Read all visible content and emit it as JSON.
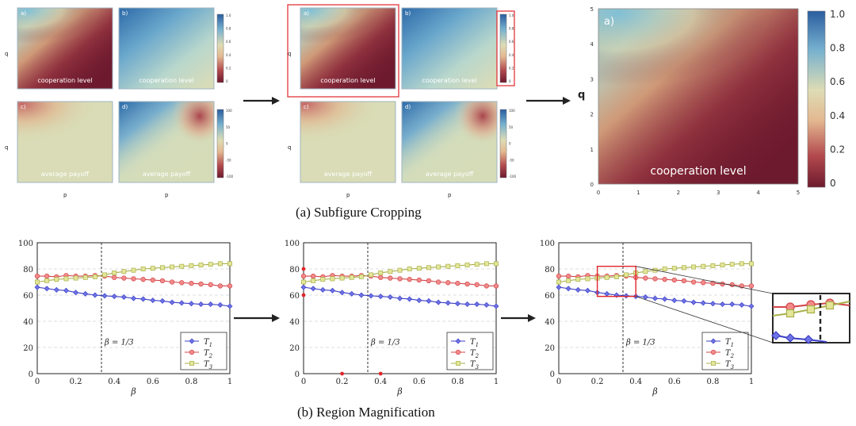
{
  "captions": {
    "top": "(a) Subfigure Cropping",
    "bottom": "(b) Region Magnification"
  },
  "heatmap_panel_labels": [
    "a)",
    "b)",
    "c)",
    "d)"
  ],
  "heatmap_overlays": {
    "cooperation": "cooperation level",
    "payoff": "average payoff"
  },
  "heatmap_axes": {
    "x": "p",
    "y": "q"
  },
  "colorbar_small_top": [
    "1.0",
    "0.8",
    "0.6",
    "0.4",
    "0.2",
    "0"
  ],
  "colorbar_small_bottom": [
    "100",
    "50",
    "0",
    "-50",
    "-100"
  ],
  "cropped_panel": {
    "label": "a)",
    "overlay": "cooperation level",
    "ylabel": "q",
    "xticks": [
      "0",
      "1",
      "2",
      "3",
      "4",
      "5"
    ],
    "yticks": [
      "0",
      "1",
      "2",
      "3",
      "4",
      "5"
    ],
    "colorbar_ticks": [
      "1.0",
      "0.8",
      "0.6",
      "0.4",
      "0.2",
      "0"
    ]
  },
  "colors": {
    "deep_red": "#6e1a2e",
    "blue": "#2d6aa8",
    "tan": "#dfd9b0",
    "frame_red": "#e0262b",
    "t1": "#3b3fc4",
    "t2": "#d2464a",
    "t3": "#a8b04a"
  },
  "chart_data": {
    "type": "line",
    "xlabel": "β",
    "ylabel": "",
    "xlim": [
      0,
      1
    ],
    "ylim": [
      0,
      100
    ],
    "xticks": [
      "0",
      "0.2",
      "0.4",
      "0.6",
      "0.8",
      "1"
    ],
    "yticks": [
      "0",
      "20",
      "40",
      "60",
      "80",
      "100"
    ],
    "annotation": "β = 1/3",
    "x": [
      0,
      0.05,
      0.1,
      0.15,
      0.2,
      0.25,
      0.3,
      0.35,
      0.4,
      0.45,
      0.5,
      0.55,
      0.6,
      0.65,
      0.7,
      0.75,
      0.8,
      0.85,
      0.9,
      0.95,
      1
    ],
    "series": [
      {
        "name": "T1",
        "values": [
          66,
          65,
          64,
          63.5,
          62,
          61,
          60,
          59.5,
          59,
          58.5,
          57.5,
          57,
          56,
          55.5,
          54.5,
          54,
          53.5,
          53,
          53,
          52.5,
          51.5
        ]
      },
      {
        "name": "T2",
        "values": [
          74.5,
          74.5,
          74,
          75,
          74.5,
          74.5,
          75,
          74.5,
          73.5,
          73,
          72.5,
          72,
          71.5,
          71,
          70,
          69.5,
          69,
          68.5,
          68,
          67,
          67
        ]
      },
      {
        "name": "T3",
        "values": [
          70,
          71,
          72,
          72.5,
          73,
          73.5,
          74,
          75.5,
          77,
          78,
          79,
          80,
          80.5,
          81,
          81.5,
          82,
          82.5,
          83,
          83.5,
          84,
          84
        ]
      }
    ]
  }
}
